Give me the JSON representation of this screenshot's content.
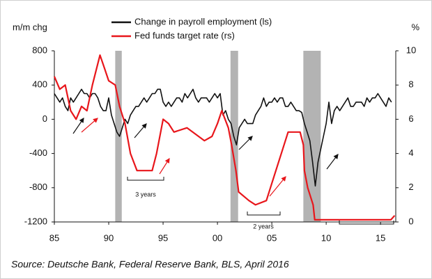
{
  "chart_data": {
    "type": "line",
    "y_label": "m/m chg",
    "y2_label": "%",
    "source": "Source: Deutsche Bank, Federal Reserve Bank, BLS, April 2016",
    "annotations": [
      "3 years",
      "2 years"
    ],
    "xlim": [
      1985,
      2016.4
    ],
    "xticks": [
      {
        "value": 1985,
        "label": "85"
      },
      {
        "value": 1990,
        "label": "90"
      },
      {
        "value": 1995,
        "label": "95"
      },
      {
        "value": 2000,
        "label": "00"
      },
      {
        "value": 2005,
        "label": "05"
      },
      {
        "value": 2010,
        "label": "10"
      },
      {
        "value": 2015,
        "label": "15"
      }
    ],
    "ylim": [
      -1200,
      800
    ],
    "yticks": [
      800,
      400,
      0,
      -400,
      -800,
      -1200
    ],
    "y2lim": [
      0,
      10
    ],
    "y2ticks": [
      10,
      8,
      6,
      4,
      2,
      0
    ],
    "recessions": [
      [
        1990.6,
        1991.2
      ],
      [
        2001.2,
        2001.9
      ],
      [
        2007.9,
        2009.5
      ]
    ],
    "recession_color": "#b3b3b3",
    "series": [
      {
        "name": "Change in payroll employment (ls)",
        "color": "#111111",
        "axis": "y",
        "x": [
          1985,
          1985.25,
          1985.5,
          1985.75,
          1986,
          1986.25,
          1986.5,
          1986.75,
          1987,
          1987.25,
          1987.5,
          1987.75,
          1988,
          1988.25,
          1988.5,
          1988.75,
          1989,
          1989.25,
          1989.5,
          1989.75,
          1990,
          1990.25,
          1990.5,
          1990.75,
          1991,
          1991.25,
          1991.5,
          1991.75,
          1992,
          1992.25,
          1992.5,
          1992.75,
          1993,
          1993.25,
          1993.5,
          1993.75,
          1994,
          1994.25,
          1994.5,
          1994.75,
          1995,
          1995.25,
          1995.5,
          1995.75,
          1996,
          1996.25,
          1996.5,
          1996.75,
          1997,
          1997.25,
          1997.5,
          1997.75,
          1998,
          1998.25,
          1998.5,
          1998.75,
          1999,
          1999.25,
          1999.5,
          1999.75,
          2000,
          2000.25,
          2000.5,
          2000.75,
          2001,
          2001.25,
          2001.5,
          2001.75,
          2002,
          2002.25,
          2002.5,
          2002.75,
          2003,
          2003.25,
          2003.5,
          2003.75,
          2004,
          2004.25,
          2004.5,
          2004.75,
          2005,
          2005.25,
          2005.5,
          2005.75,
          2006,
          2006.25,
          2006.5,
          2006.75,
          2007,
          2007.25,
          2007.5,
          2007.75,
          2008,
          2008.25,
          2008.5,
          2008.75,
          2009,
          2009.25,
          2009.5,
          2009.75,
          2010,
          2010.25,
          2010.5,
          2010.75,
          2011,
          2011.25,
          2011.5,
          2011.75,
          2012,
          2012.25,
          2012.5,
          2012.75,
          2013,
          2013.25,
          2013.5,
          2013.75,
          2014,
          2014.25,
          2014.5,
          2014.75,
          2015,
          2015.25,
          2015.5,
          2015.75,
          2016
        ],
        "values": [
          300,
          250,
          200,
          250,
          150,
          100,
          250,
          200,
          250,
          300,
          350,
          300,
          300,
          250,
          300,
          300,
          250,
          150,
          100,
          100,
          250,
          50,
          -50,
          -150,
          -200,
          -100,
          0,
          -50,
          50,
          100,
          150,
          150,
          200,
          250,
          200,
          250,
          300,
          300,
          350,
          350,
          200,
          150,
          200,
          150,
          200,
          250,
          250,
          200,
          300,
          250,
          300,
          350,
          250,
          200,
          250,
          250,
          250,
          200,
          250,
          300,
          250,
          300,
          50,
          100,
          0,
          -50,
          -200,
          -300,
          -100,
          -50,
          0,
          -50,
          -50,
          -50,
          50,
          100,
          150,
          250,
          150,
          200,
          200,
          250,
          200,
          250,
          250,
          150,
          150,
          200,
          150,
          100,
          100,
          80,
          -50,
          -150,
          -250,
          -500,
          -780,
          -500,
          -350,
          -200,
          -50,
          200,
          -50,
          100,
          150,
          100,
          150,
          200,
          250,
          150,
          150,
          200,
          200,
          200,
          150,
          250,
          200,
          250,
          250,
          300,
          250,
          200,
          150,
          250,
          200
        ]
      },
      {
        "name": "Fed funds target rate (rs)",
        "color": "#e8161b",
        "axis": "y2",
        "x": [
          1985,
          1985.5,
          1986,
          1986.5,
          1987,
          1987.5,
          1988,
          1988.5,
          1989.2,
          1989.6,
          1990,
          1990.6,
          1991,
          1991.5,
          1992,
          1992.6,
          1993,
          1994,
          1994.4,
          1995,
          1995.5,
          1996,
          1997.2,
          1998.8,
          1999.5,
          2000,
          2000.4,
          2001,
          2001.3,
          2001.7,
          2001.95,
          2002.9,
          2003.5,
          2004.5,
          2005,
          2006,
          2006.5,
          2007.6,
          2007.9,
          2008,
          2008.3,
          2008.8,
          2008.95,
          2015.95,
          2016.3
        ],
        "values": [
          8.5,
          7.75,
          8,
          6.5,
          6,
          6.75,
          6.5,
          8,
          9.75,
          9,
          8.25,
          8,
          6.75,
          5.75,
          4,
          3,
          3,
          3,
          4,
          6,
          5.75,
          5.25,
          5.5,
          4.75,
          5,
          5.75,
          6.5,
          5.5,
          4.5,
          3,
          1.75,
          1.25,
          1,
          1.25,
          2.25,
          4.25,
          5.25,
          5.25,
          4.5,
          3,
          2,
          1,
          0.125,
          0.125,
          0.375
        ]
      }
    ]
  }
}
